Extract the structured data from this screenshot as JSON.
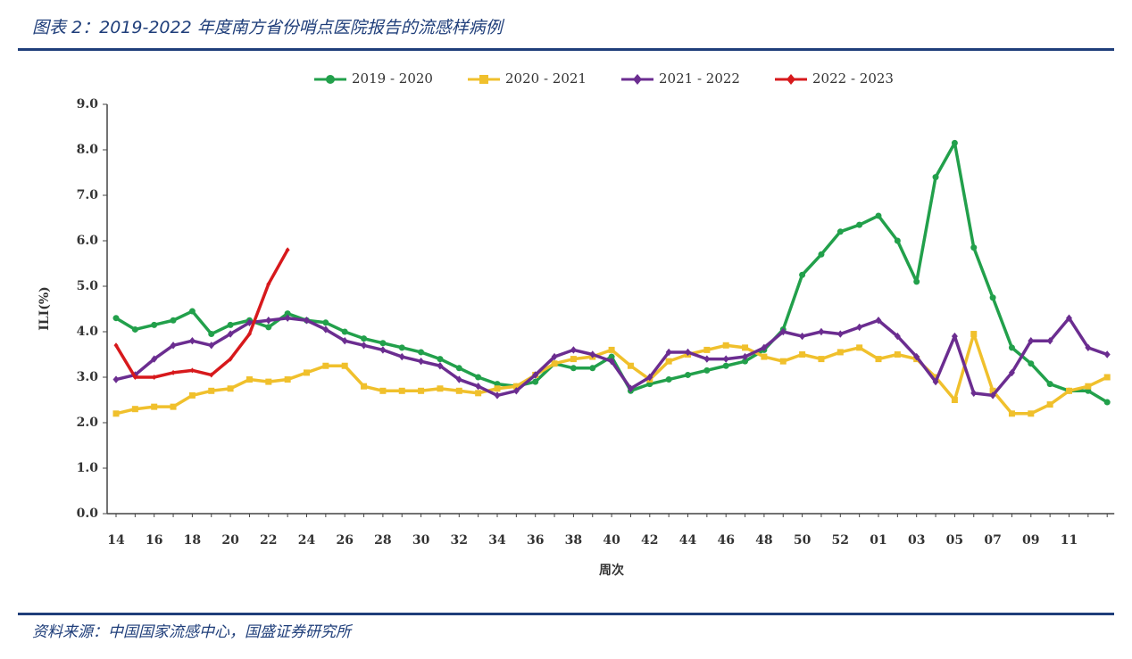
{
  "header": {
    "title": "图表 2：2019-2022 年度南方省份哨点医院报告的流感样病例"
  },
  "source": "资料来源：中国国家流感中心，国盛证券研究所",
  "chart_data": {
    "type": "line",
    "xlabel": "周次",
    "ylabel": "ILI(%)",
    "categories": [
      "14",
      null,
      "16",
      null,
      "18",
      null,
      "20",
      null,
      "22",
      null,
      "24",
      null,
      "26",
      null,
      "28",
      null,
      "30",
      null,
      "32",
      null,
      "34",
      null,
      "36",
      null,
      "38",
      null,
      "40",
      null,
      "42",
      null,
      "44",
      null,
      "46",
      null,
      "48",
      null,
      "50",
      null,
      "52",
      null,
      "01",
      null,
      "03",
      null,
      "05",
      null,
      "07",
      null,
      "09",
      null,
      "11",
      null,
      null
    ],
    "ylim": [
      0,
      9
    ],
    "yticks": [
      {
        "value": 0,
        "label": "0.0"
      },
      {
        "value": 1,
        "label": "1.0"
      },
      {
        "value": 2,
        "label": "2.0"
      },
      {
        "value": 3,
        "label": "3.0"
      },
      {
        "value": 4,
        "label": "4.0"
      },
      {
        "value": 5,
        "label": "5.0"
      },
      {
        "value": 6,
        "label": "6.0"
      },
      {
        "value": 7,
        "label": "7.0"
      },
      {
        "value": 8,
        "label": "8.0"
      },
      {
        "value": 9,
        "label": "9.0"
      }
    ],
    "grid": false,
    "legend": "top",
    "series": [
      {
        "name": "2019 - 2020",
        "color": "#22a04b",
        "marker": "circle",
        "values": [
          4.3,
          4.05,
          4.15,
          4.25,
          4.45,
          3.95,
          4.15,
          4.25,
          4.1,
          4.4,
          4.25,
          4.2,
          4.0,
          3.85,
          3.75,
          3.65,
          3.55,
          3.4,
          3.2,
          3.0,
          2.85,
          2.8,
          2.9,
          3.3,
          3.2,
          3.2,
          3.45,
          2.7,
          2.85,
          2.95,
          3.05,
          3.15,
          3.25,
          3.35,
          3.6,
          4.05,
          5.25,
          5.7,
          6.2,
          6.35,
          6.55,
          6.0,
          5.1,
          7.4,
          8.15,
          5.85,
          4.75,
          3.65,
          3.3,
          2.85,
          2.7,
          2.7,
          2.45
        ]
      },
      {
        "name": "2020 - 2021",
        "color": "#f0c02c",
        "marker": "square",
        "values": [
          2.2,
          2.3,
          2.35,
          2.35,
          2.6,
          2.7,
          2.75,
          2.95,
          2.9,
          2.95,
          3.1,
          3.25,
          3.25,
          2.8,
          2.7,
          2.7,
          2.7,
          2.75,
          2.7,
          2.65,
          2.75,
          2.8,
          3.05,
          3.3,
          3.4,
          3.45,
          3.6,
          3.25,
          2.95,
          3.35,
          3.5,
          3.6,
          3.7,
          3.65,
          3.45,
          3.35,
          3.5,
          3.4,
          3.55,
          3.65,
          3.4,
          3.5,
          3.4,
          3.0,
          2.5,
          3.95,
          2.7,
          2.2,
          2.2,
          2.4,
          2.7,
          2.8,
          3.0
        ]
      },
      {
        "name": "2021 - 2022",
        "color": "#6b2d90",
        "marker": "diamond",
        "values": [
          2.95,
          3.05,
          3.4,
          3.7,
          3.8,
          3.7,
          3.95,
          4.2,
          4.25,
          4.3,
          4.25,
          4.05,
          3.8,
          3.7,
          3.6,
          3.45,
          3.35,
          3.25,
          2.95,
          2.8,
          2.6,
          2.7,
          3.05,
          3.45,
          3.6,
          3.5,
          3.35,
          2.75,
          3.0,
          3.55,
          3.55,
          3.4,
          3.4,
          3.45,
          3.65,
          4.0,
          3.9,
          4.0,
          3.95,
          4.1,
          4.25,
          3.9,
          3.45,
          2.9,
          3.9,
          2.65,
          2.6,
          3.1,
          3.8,
          3.8,
          4.3,
          3.65,
          3.5
        ]
      },
      {
        "name": "2022 - 2023",
        "color": "#d7191c",
        "marker": "diamond",
        "values": [
          3.7,
          3.0,
          3.0,
          3.1,
          3.15,
          3.05,
          3.4,
          3.95,
          5.05,
          5.8,
          null,
          null,
          null,
          null,
          null,
          null,
          null,
          null,
          null,
          null,
          null,
          null,
          null,
          null,
          null,
          null,
          null,
          null,
          null,
          null,
          null,
          null,
          null,
          null,
          null,
          null,
          null,
          null,
          null,
          null,
          null,
          null,
          null,
          null,
          null,
          null,
          null,
          null,
          null,
          null,
          null,
          null,
          null
        ]
      }
    ]
  }
}
